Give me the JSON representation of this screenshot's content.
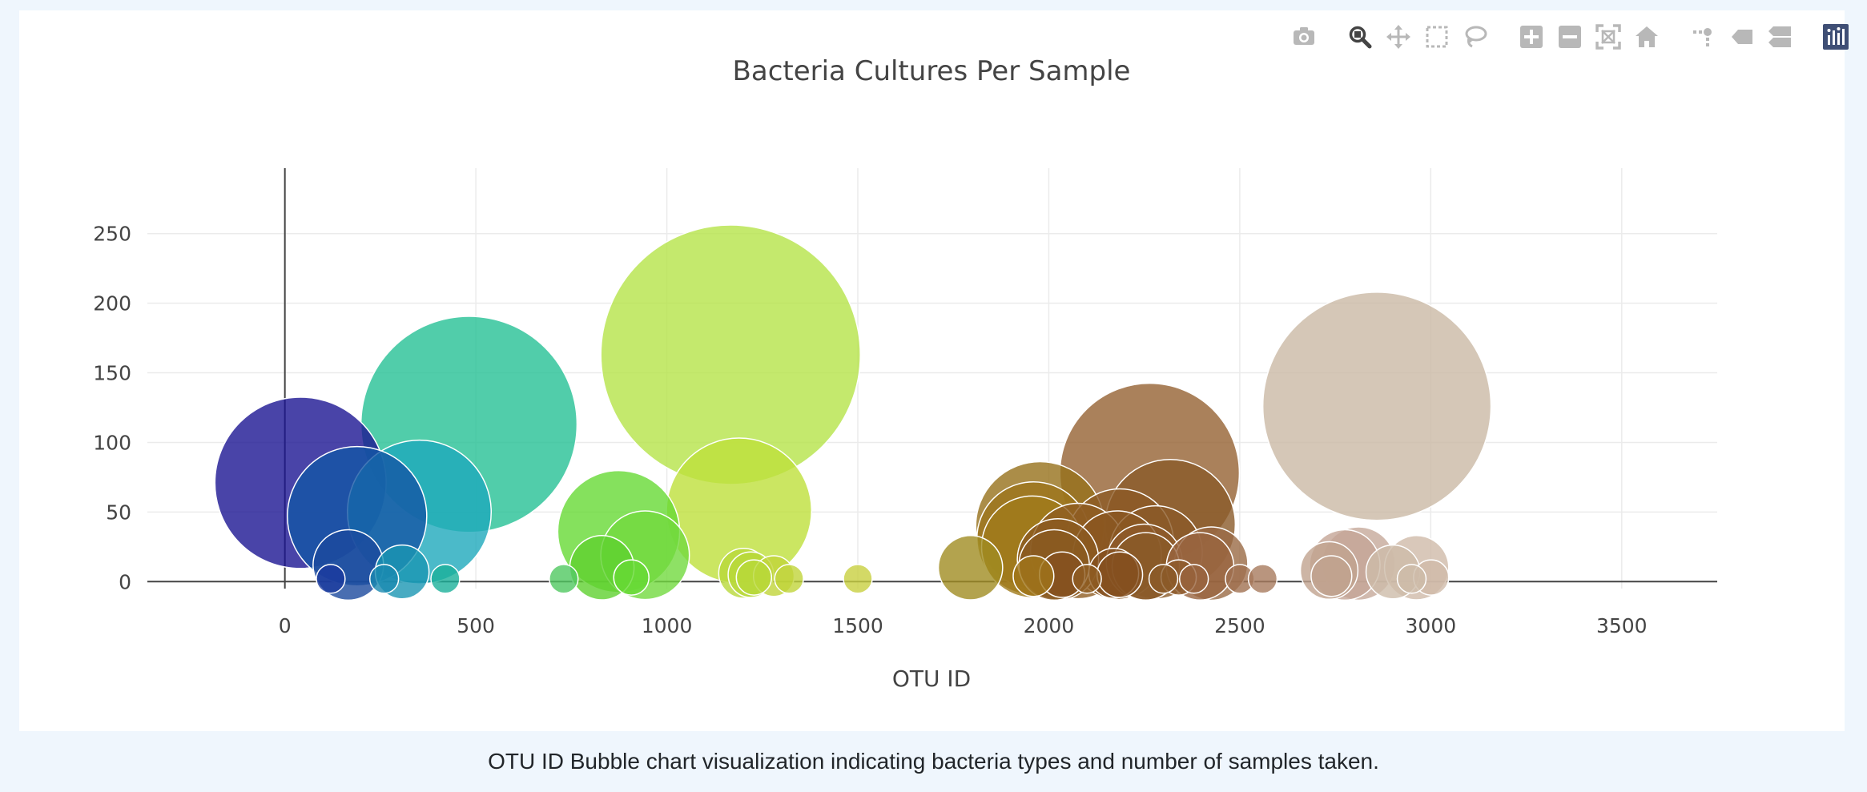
{
  "caption": "OTU ID Bubble chart visualization indicating bacteria types and number of samples taken.",
  "modebar": {
    "tools": [
      {
        "name": "camera-icon"
      },
      {
        "gap": true
      },
      {
        "name": "zoom-icon",
        "active": true
      },
      {
        "name": "pan-icon"
      },
      {
        "name": "box-select-icon"
      },
      {
        "name": "lasso-select-icon"
      },
      {
        "gap": true
      },
      {
        "name": "zoom-in-icon"
      },
      {
        "name": "zoom-out-icon"
      },
      {
        "name": "autoscale-icon"
      },
      {
        "name": "reset-axes-icon"
      },
      {
        "gap": true
      },
      {
        "name": "spike-lines-icon"
      },
      {
        "name": "hover-closest-icon"
      },
      {
        "name": "hover-compare-icon"
      },
      {
        "gap": true
      },
      {
        "name": "plotly-logo-icon"
      }
    ],
    "colors": {
      "icon": "#b8b8b8",
      "active": "#444444",
      "logo_bg": "#3f4f75"
    }
  },
  "chart_data": {
    "type": "scatter",
    "title": "Bacteria Cultures Per Sample",
    "xlabel": "OTU ID",
    "ylabel": "",
    "xlim": [
      -360,
      3750
    ],
    "ylim": [
      -5,
      297
    ],
    "xticks": [
      "0",
      "500",
      "1000",
      "1500",
      "2000",
      "2500",
      "3000",
      "3500"
    ],
    "xtick_values": [
      0,
      500,
      1000,
      1500,
      2000,
      2500,
      3000,
      3500
    ],
    "yticks": [
      "0",
      "50",
      "100",
      "150",
      "200",
      "250"
    ],
    "ytick_values": [
      0,
      50,
      100,
      150,
      200,
      250
    ],
    "grid": true,
    "marker_opacity": 0.8,
    "points": [
      {
        "x": 1167,
        "y": 163,
        "s": 163,
        "color": "#b5e349"
      },
      {
        "x": 2859,
        "y": 126,
        "s": 126,
        "color": "#cbb9a5"
      },
      {
        "x": 482,
        "y": 113,
        "s": 113,
        "color": "#25c095"
      },
      {
        "x": 2264,
        "y": 78,
        "s": 78,
        "color": "#956232"
      },
      {
        "x": 41,
        "y": 71,
        "s": 71,
        "color": "#1b1592"
      },
      {
        "x": 1189,
        "y": 51,
        "s": 51,
        "color": "#bee03b"
      },
      {
        "x": 352,
        "y": 50,
        "s": 50,
        "color": "#1ea9bc"
      },
      {
        "x": 189,
        "y": 47,
        "s": 47,
        "color": "#1456a5"
      },
      {
        "x": 2318,
        "y": 41,
        "s": 41,
        "color": "#8a5a29"
      },
      {
        "x": 1977,
        "y": 40,
        "s": 40,
        "color": "#96701a"
      },
      {
        "x": 874,
        "y": 36,
        "s": 36,
        "color": "#66d935"
      },
      {
        "x": 1960,
        "y": 31,
        "s": 31,
        "color": "#9c741c"
      },
      {
        "x": 2186,
        "y": 28,
        "s": 28,
        "color": "#8c5a25"
      },
      {
        "x": 1957,
        "y": 25,
        "s": 25,
        "color": "#a07a1a"
      },
      {
        "x": 2077,
        "y": 22,
        "s": 22,
        "color": "#8e5c22"
      },
      {
        "x": 2280,
        "y": 21,
        "s": 21,
        "color": "#8b5a28"
      },
      {
        "x": 943,
        "y": 19,
        "s": 19,
        "color": "#72d93f"
      },
      {
        "x": 2179,
        "y": 19,
        "s": 19,
        "color": "#8a5620"
      },
      {
        "x": 2024,
        "y": 16,
        "s": 16,
        "color": "#8b5a20"
      },
      {
        "x": 2250,
        "y": 14,
        "s": 14,
        "color": "#8d5a2a"
      },
      {
        "x": 2425,
        "y": 13,
        "s": 13,
        "color": "#9a6a45"
      },
      {
        "x": 2811,
        "y": 13,
        "s": 13,
        "color": "#c5a99a"
      },
      {
        "x": 2014,
        "y": 12,
        "s": 12,
        "color": "#8a5a20"
      },
      {
        "x": 166,
        "y": 12,
        "s": 12,
        "color": "#1b4a9e"
      },
      {
        "x": 2775,
        "y": 12,
        "s": 12,
        "color": "#c4a596"
      },
      {
        "x": 2254,
        "y": 11,
        "s": 11,
        "color": "#8a5a28"
      },
      {
        "x": 2396,
        "y": 11,
        "s": 11,
        "color": "#98643e"
      },
      {
        "x": 1795,
        "y": 10,
        "s": 10,
        "color": "#a08c22"
      },
      {
        "x": 2963,
        "y": 10,
        "s": 10,
        "color": "#cfbaa9"
      },
      {
        "x": 830,
        "y": 10,
        "s": 10,
        "color": "#5fd12f"
      },
      {
        "x": 2734,
        "y": 8,
        "s": 8,
        "color": "#c0a28e"
      },
      {
        "x": 307,
        "y": 7,
        "s": 7,
        "color": "#1a96b3"
      },
      {
        "x": 2901,
        "y": 7,
        "s": 7,
        "color": "#cdbba9"
      },
      {
        "x": 1201,
        "y": 6,
        "s": 6,
        "color": "#b8d83a"
      },
      {
        "x": 2170,
        "y": 6,
        "s": 6,
        "color": "#85501f"
      },
      {
        "x": 2035,
        "y": 5,
        "s": 5,
        "color": "#85501f"
      },
      {
        "x": 1220,
        "y": 5,
        "s": 5,
        "color": "#b8d83a"
      },
      {
        "x": 2186,
        "y": 5,
        "s": 5,
        "color": "#85501f"
      },
      {
        "x": 2740,
        "y": 4,
        "s": 4,
        "color": "#c0a28e"
      },
      {
        "x": 1280,
        "y": 4,
        "s": 4,
        "color": "#c0d43a"
      },
      {
        "x": 1960,
        "y": 4,
        "s": 4,
        "color": "#a0761a"
      },
      {
        "x": 3001,
        "y": 3,
        "s": 3,
        "color": "#cfbaa9"
      },
      {
        "x": 2340,
        "y": 3,
        "s": 3,
        "color": "#8d5a2a"
      },
      {
        "x": 1228,
        "y": 3,
        "s": 3,
        "color": "#b8d83a"
      },
      {
        "x": 907,
        "y": 3,
        "s": 3,
        "color": "#66d935"
      },
      {
        "x": 120,
        "y": 2,
        "s": 2,
        "color": "#1a3a9e"
      },
      {
        "x": 260,
        "y": 2,
        "s": 2,
        "color": "#1a8ab0"
      },
      {
        "x": 420,
        "y": 2,
        "s": 2,
        "color": "#1ab09a"
      },
      {
        "x": 730,
        "y": 2,
        "s": 2,
        "color": "#50c860"
      },
      {
        "x": 1320,
        "y": 2,
        "s": 2,
        "color": "#c0d43a"
      },
      {
        "x": 1500,
        "y": 2,
        "s": 2,
        "color": "#c8d040"
      },
      {
        "x": 2100,
        "y": 2,
        "s": 2,
        "color": "#8e5c22"
      },
      {
        "x": 2300,
        "y": 2,
        "s": 2,
        "color": "#8b5a28"
      },
      {
        "x": 2380,
        "y": 2,
        "s": 2,
        "color": "#98643e"
      },
      {
        "x": 2500,
        "y": 2,
        "s": 2,
        "color": "#a07050"
      },
      {
        "x": 2560,
        "y": 2,
        "s": 2,
        "color": "#a87a5e"
      },
      {
        "x": 2950,
        "y": 2,
        "s": 2,
        "color": "#cdbba9"
      }
    ]
  }
}
